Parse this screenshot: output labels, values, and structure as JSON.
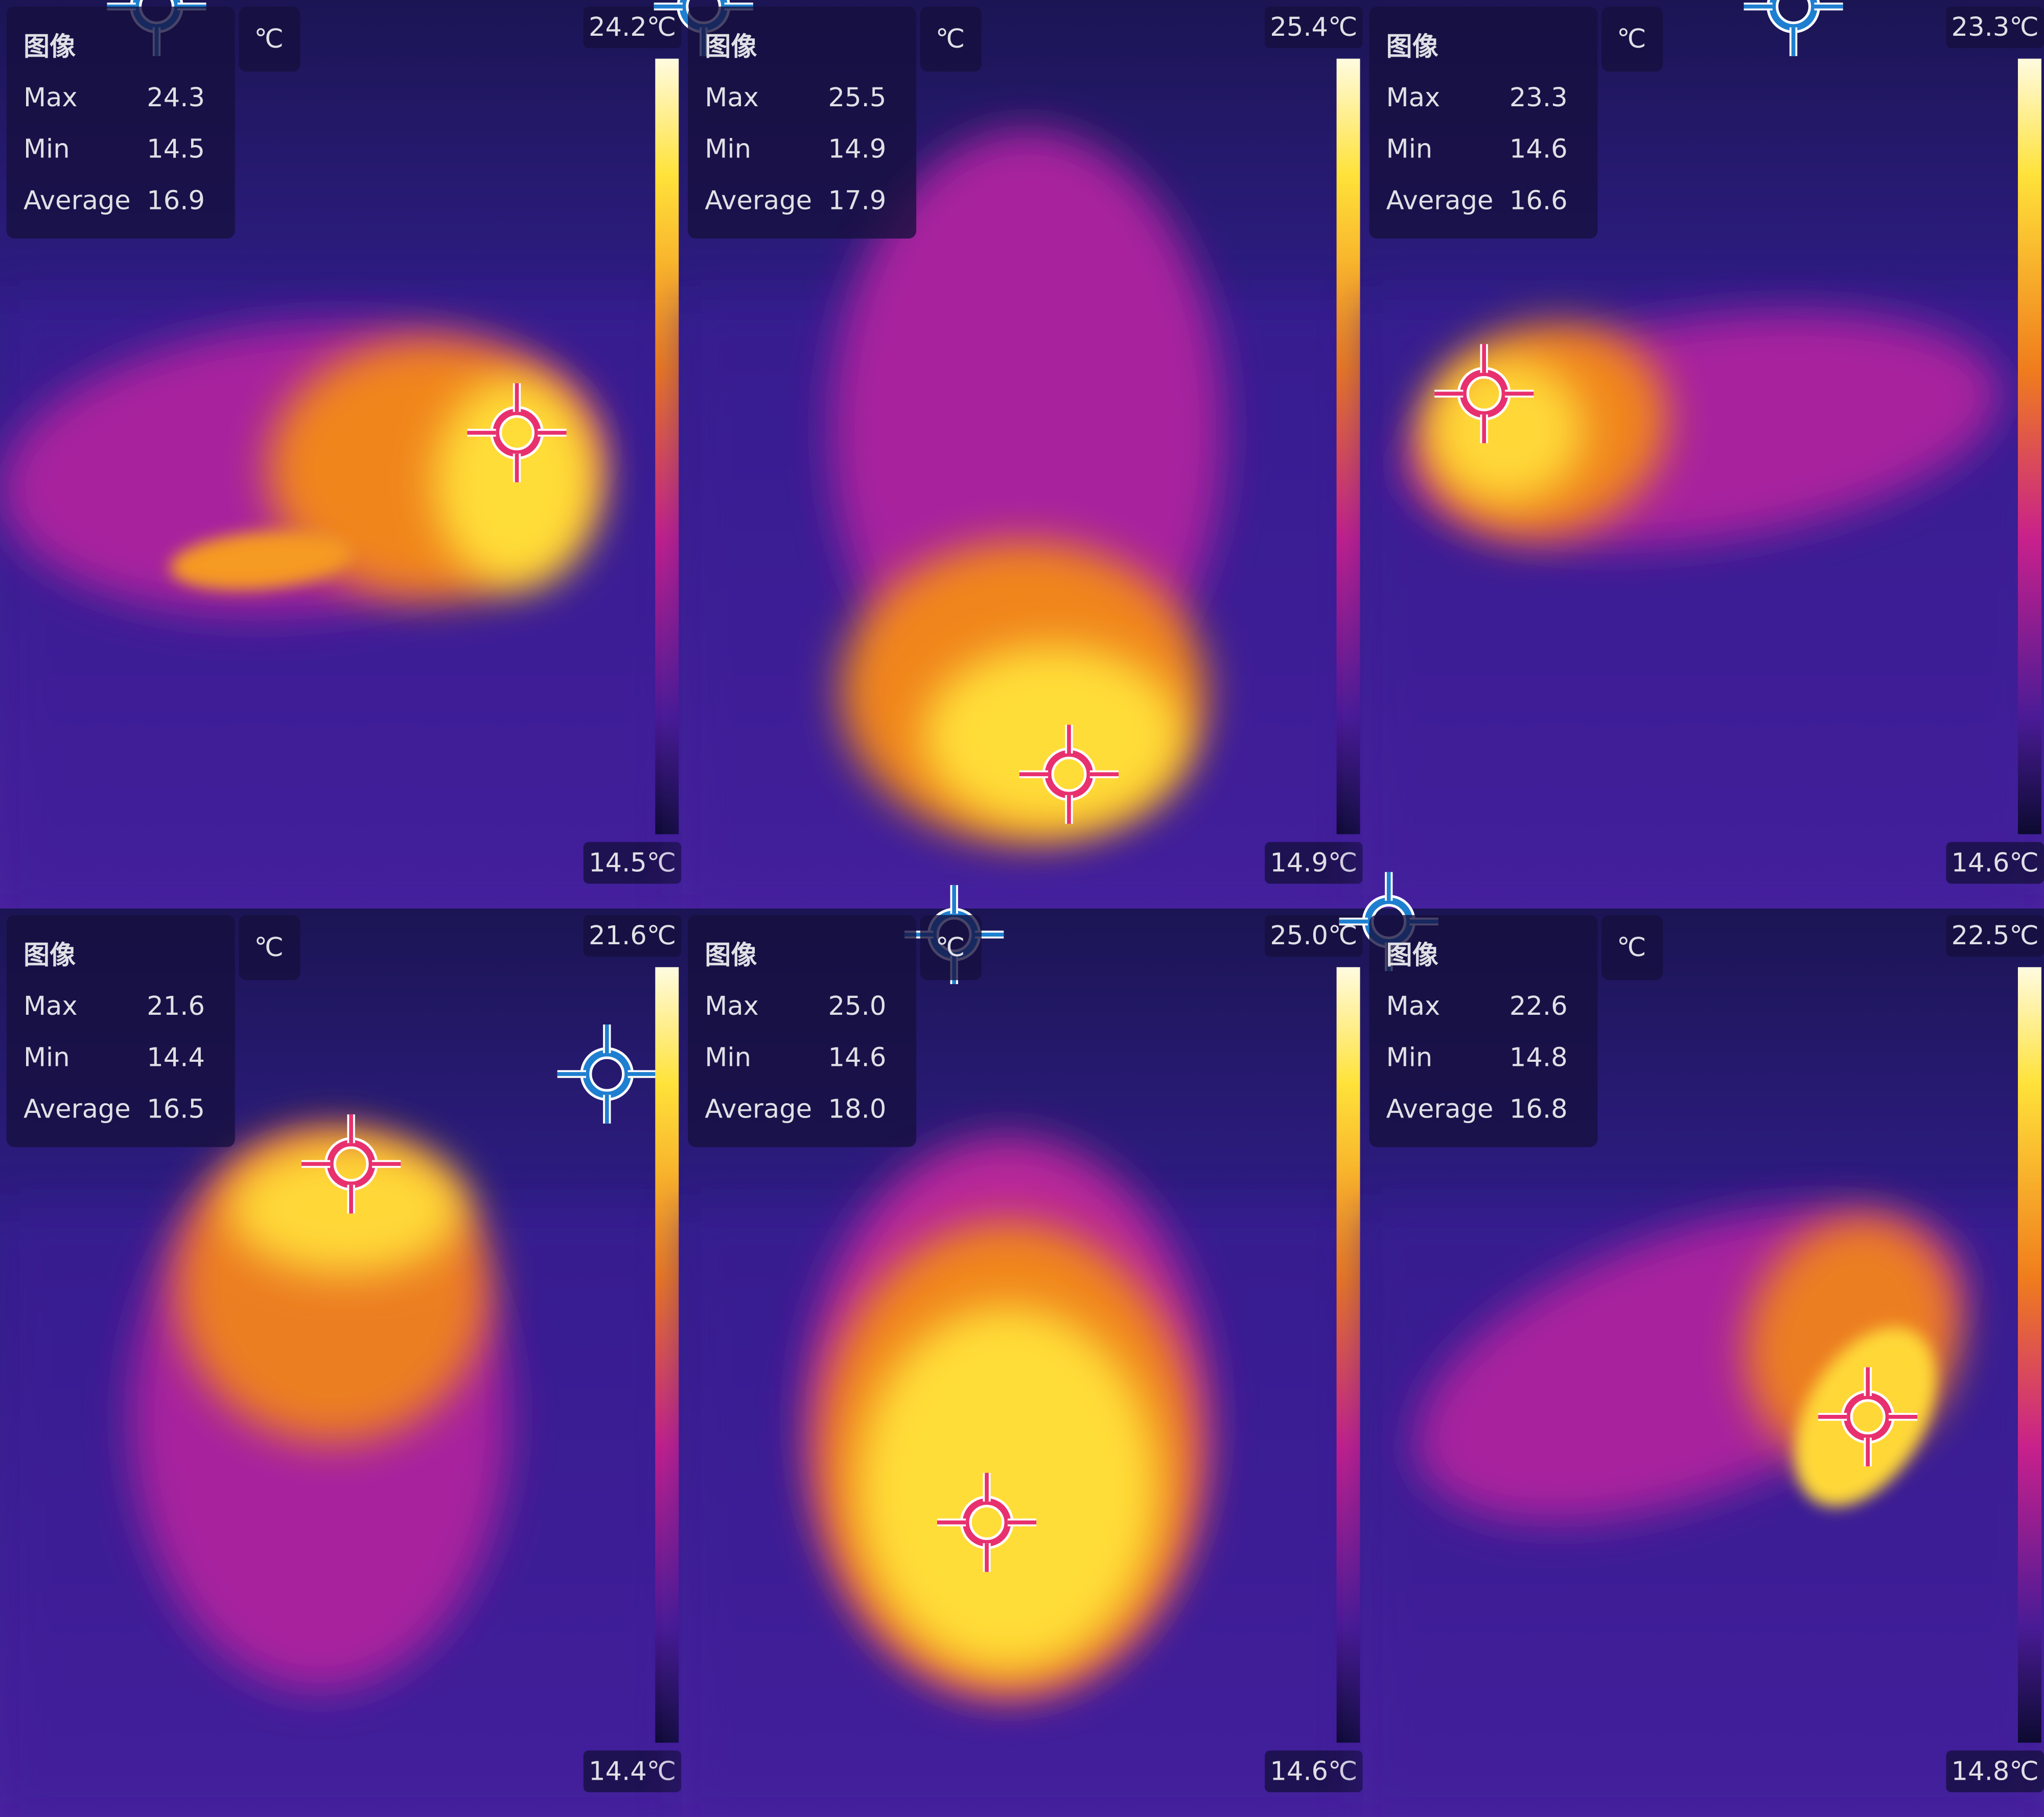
{
  "panels": [
    {
      "label": "图像",
      "unit": "℃",
      "stats": [
        {
          "name": "Max",
          "value": "24.3"
        },
        {
          "name": "Min",
          "value": "14.5"
        },
        {
          "name": "Average",
          "value": "16.9"
        }
      ],
      "scale_max": "24.2℃",
      "scale_min": "14.5℃"
    },
    {
      "label": "图像",
      "unit": "℃",
      "stats": [
        {
          "name": "Max",
          "value": "25.5"
        },
        {
          "name": "Min",
          "value": "14.9"
        },
        {
          "name": "Average",
          "value": "17.9"
        }
      ],
      "scale_max": "25.4℃",
      "scale_min": "14.9℃"
    },
    {
      "label": "图像",
      "unit": "℃",
      "stats": [
        {
          "name": "Max",
          "value": "23.3"
        },
        {
          "name": "Min",
          "value": "14.6"
        },
        {
          "name": "Average",
          "value": "16.6"
        }
      ],
      "scale_max": "23.3℃",
      "scale_min": "14.6℃"
    },
    {
      "label": "图像",
      "unit": "℃",
      "stats": [
        {
          "name": "Max",
          "value": "21.6"
        },
        {
          "name": "Min",
          "value": "14.4"
        },
        {
          "name": "Average",
          "value": "16.5"
        }
      ],
      "scale_max": "21.6℃",
      "scale_min": "14.4℃"
    },
    {
      "label": "图像",
      "unit": "℃",
      "stats": [
        {
          "name": "Max",
          "value": "25.0"
        },
        {
          "name": "Min",
          "value": "14.6"
        },
        {
          "name": "Average",
          "value": "18.0"
        }
      ],
      "scale_max": "25.0℃",
      "scale_min": "14.6℃"
    },
    {
      "label": "图像",
      "unit": "℃",
      "stats": [
        {
          "name": "Max",
          "value": "22.6"
        },
        {
          "name": "Min",
          "value": "14.8"
        },
        {
          "name": "Average",
          "value": "16.8"
        }
      ],
      "scale_max": "22.5℃",
      "scale_min": "14.8℃"
    }
  ]
}
